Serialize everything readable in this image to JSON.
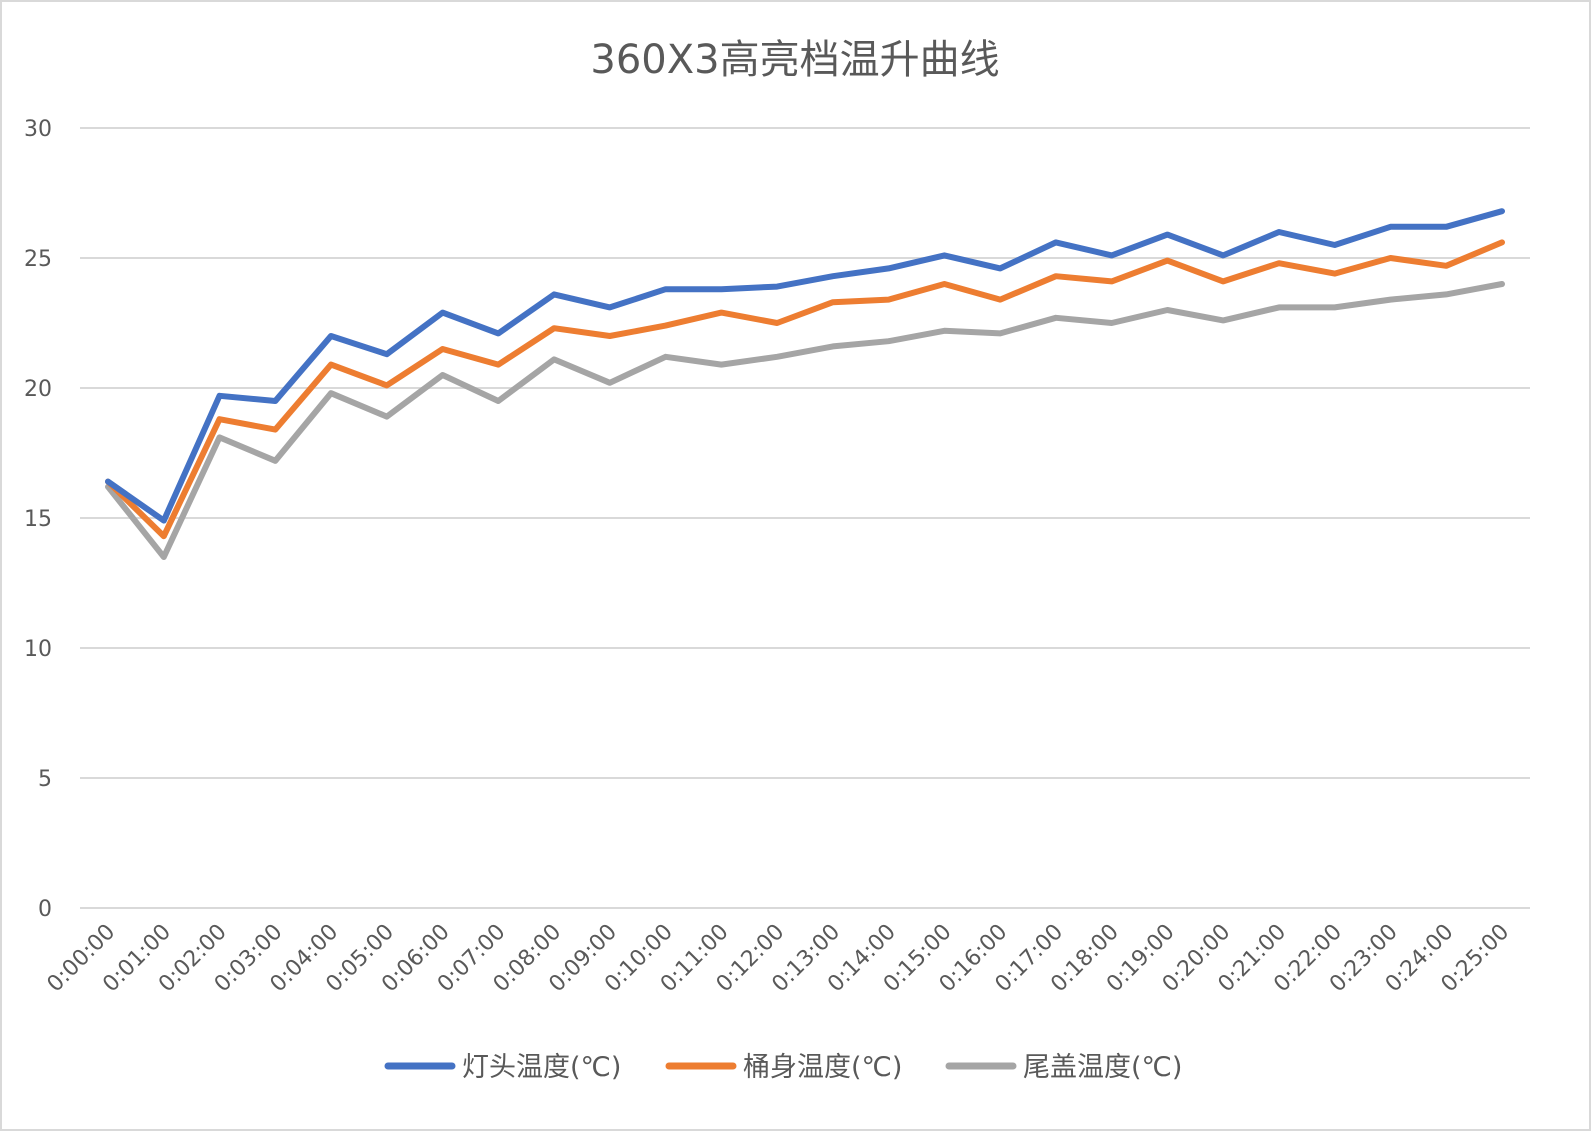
{
  "chart_data": {
    "type": "line",
    "title": "360X3高亮档温升曲线",
    "xlabel": "",
    "ylabel": "",
    "ylim": [
      0,
      30
    ],
    "yticks": [
      0,
      5,
      10,
      15,
      20,
      25,
      30
    ],
    "grid": true,
    "legend_position": "bottom",
    "categories": [
      "0:00:00",
      "0:01:00",
      "0:02:00",
      "0:03:00",
      "0:04:00",
      "0:05:00",
      "0:06:00",
      "0:07:00",
      "0:08:00",
      "0:09:00",
      "0:10:00",
      "0:11:00",
      "0:12:00",
      "0:13:00",
      "0:14:00",
      "0:15:00",
      "0:16:00",
      "0:17:00",
      "0:18:00",
      "0:19:00",
      "0:20:00",
      "0:21:00",
      "0:22:00",
      "0:23:00",
      "0:24:00",
      "0:25:00"
    ],
    "series": [
      {
        "name": "灯头温度(℃)",
        "color": "#4472c4",
        "values": [
          16.4,
          14.9,
          19.7,
          19.5,
          22.0,
          21.3,
          22.9,
          22.1,
          23.6,
          23.1,
          23.8,
          23.8,
          23.9,
          24.3,
          24.6,
          25.1,
          24.6,
          25.6,
          25.1,
          25.9,
          25.1,
          26.0,
          25.5,
          26.2,
          26.2,
          26.8
        ]
      },
      {
        "name": "桶身温度(℃)",
        "color": "#ed7d31",
        "values": [
          16.4,
          14.3,
          18.8,
          18.4,
          20.9,
          20.1,
          21.5,
          20.9,
          22.3,
          22.0,
          22.4,
          22.9,
          22.5,
          23.3,
          23.4,
          24.0,
          23.4,
          24.3,
          24.1,
          24.9,
          24.1,
          24.8,
          24.4,
          25.0,
          24.7,
          25.6
        ]
      },
      {
        "name": "尾盖温度(℃)",
        "color": "#a5a5a5",
        "values": [
          16.2,
          13.5,
          18.1,
          17.2,
          19.8,
          18.9,
          20.5,
          19.5,
          21.1,
          20.2,
          21.2,
          20.9,
          21.2,
          21.6,
          21.8,
          22.2,
          22.1,
          22.7,
          22.5,
          23.0,
          22.6,
          23.1,
          23.1,
          23.4,
          23.6,
          24.0
        ]
      }
    ]
  }
}
